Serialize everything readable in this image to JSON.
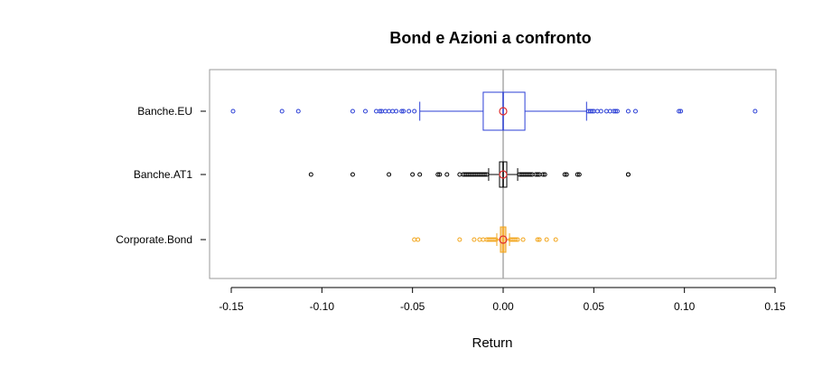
{
  "chart_data": {
    "type": "boxplot",
    "orientation": "horizontal",
    "title": "Bond e Azioni a confronto",
    "xlabel": "Return",
    "ylabel": "",
    "xlim": [
      -0.16,
      0.15
    ],
    "xticks": [
      -0.15,
      -0.1,
      -0.05,
      0.0,
      0.05,
      0.1,
      0.15
    ],
    "xtick_labels": [
      "-0.15",
      "-0.10",
      "-0.05",
      "0.00",
      "0.05",
      "0.10",
      "0.15"
    ],
    "reference_line_x": 0.0,
    "series": [
      {
        "name": "Banche.EU",
        "color": "#2b3fd6",
        "fill": "none",
        "whisker_low": -0.046,
        "q1": -0.011,
        "median": 0.0,
        "q3": 0.012,
        "whisker_high": 0.046,
        "mean": 0.0,
        "outliers": [
          -0.149,
          -0.122,
          -0.113,
          -0.083,
          -0.076,
          -0.07,
          -0.068,
          -0.067,
          -0.065,
          -0.063,
          -0.061,
          -0.059,
          -0.056,
          -0.055,
          -0.052,
          -0.049,
          0.047,
          0.048,
          0.049,
          0.05,
          0.052,
          0.054,
          0.057,
          0.059,
          0.061,
          0.062,
          0.063,
          0.069,
          0.073,
          0.097,
          0.098,
          0.139
        ]
      },
      {
        "name": "Banche.AT1",
        "color": "#000000",
        "fill": "none",
        "whisker_low": -0.008,
        "q1": -0.002,
        "median": 0.0,
        "q3": 0.002,
        "whisker_high": 0.008,
        "mean": 0.0,
        "outliers": [
          -0.106,
          -0.083,
          -0.063,
          -0.05,
          -0.046,
          -0.036,
          -0.035,
          -0.031,
          -0.024,
          -0.022,
          -0.021,
          -0.02,
          -0.019,
          -0.018,
          -0.017,
          -0.016,
          -0.015,
          -0.014,
          -0.013,
          -0.012,
          -0.011,
          -0.01,
          -0.009,
          0.009,
          0.01,
          0.011,
          0.012,
          0.013,
          0.014,
          0.015,
          0.016,
          0.018,
          0.019,
          0.02,
          0.022,
          0.023,
          0.034,
          0.035,
          0.041,
          0.042,
          0.069,
          0.069
        ]
      },
      {
        "name": "Corporate.Bond",
        "color": "#f2a51b",
        "fill": "#f7d29a",
        "whisker_low": -0.0035,
        "q1": -0.0009,
        "median": 0.0,
        "q3": 0.0009,
        "whisker_high": 0.0035,
        "mean": 0.0,
        "outliers": [
          -0.049,
          -0.047,
          -0.024,
          -0.016,
          -0.013,
          -0.011,
          -0.009,
          -0.008,
          -0.007,
          -0.006,
          -0.005,
          -0.004,
          0.004,
          0.005,
          0.006,
          0.007,
          0.008,
          0.011,
          0.019,
          0.02,
          0.024,
          0.029
        ]
      }
    ],
    "mean_marker_color": "#e03030",
    "grid": false,
    "legend": "none"
  }
}
